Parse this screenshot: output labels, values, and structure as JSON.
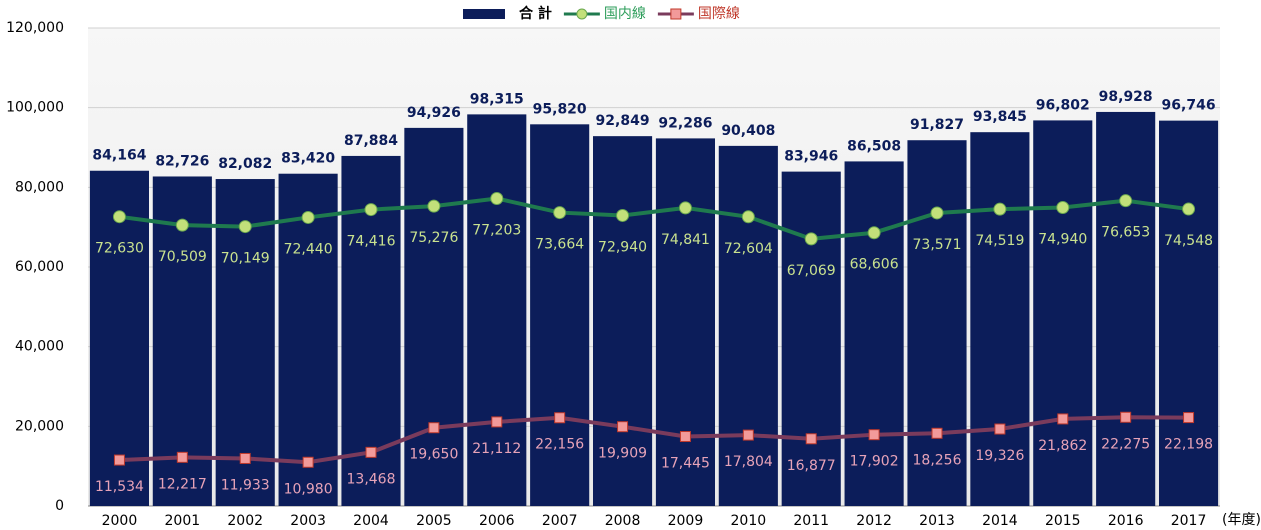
{
  "chart_data": {
    "type": "bar",
    "xlabel": "(年度)",
    "categories": [
      "2000",
      "2001",
      "2002",
      "2003",
      "2004",
      "2005",
      "2006",
      "2007",
      "2008",
      "2009",
      "2010",
      "2011",
      "2012",
      "2013",
      "2014",
      "2015",
      "2016",
      "2017"
    ],
    "series": [
      {
        "name": "合 計",
        "type": "bar",
        "color": "#0c1d5a",
        "label_color": "#0c1d5a",
        "values": [
          84164,
          82726,
          82082,
          83420,
          87884,
          94926,
          98315,
          95820,
          92849,
          92286,
          90408,
          83946,
          86508,
          91827,
          93845,
          96802,
          98928,
          96746
        ],
        "value_labels": [
          "84,164",
          "82,726",
          "82,082",
          "83,420",
          "87,884",
          "94,926",
          "98,315",
          "95,820",
          "92,849",
          "92,286",
          "90,408",
          "83,946",
          "86,508",
          "91,827",
          "93,845",
          "96,802",
          "98,928",
          "96,746"
        ]
      },
      {
        "name": "国内線",
        "type": "line",
        "color": "#1f7a4e",
        "marker_color": "#c2e07a",
        "label_color": "#c9e28f",
        "values": [
          72630,
          70509,
          70149,
          72440,
          74416,
          75276,
          77203,
          73664,
          72940,
          74841,
          72604,
          67069,
          68606,
          73571,
          74519,
          74940,
          76653,
          74548
        ],
        "value_labels": [
          "72,630",
          "70,509",
          "70,149",
          "72,440",
          "74,416",
          "75,276",
          "77,203",
          "73,664",
          "72,940",
          "74,841",
          "72,604",
          "67,069",
          "68,606",
          "73,571",
          "74,519",
          "74,940",
          "76,653",
          "74,548"
        ]
      },
      {
        "name": "国際線",
        "type": "line",
        "color": "#7a3b5c",
        "marker_color": "#f29a9a",
        "label_color": "#e7a3b8",
        "values": [
          11534,
          12217,
          11933,
          10980,
          13468,
          19650,
          21112,
          22156,
          19909,
          17445,
          17804,
          16877,
          17902,
          18256,
          19326,
          21862,
          22275,
          22198
        ],
        "value_labels": [
          "11,534",
          "12,217",
          "11,933",
          "10,980",
          "13,468",
          "19,650",
          "21,112",
          "22,156",
          "19,909",
          "17,445",
          "17,804",
          "16,877",
          "17,902",
          "18,256",
          "19,326",
          "21,862",
          "22,275",
          "22,198"
        ]
      }
    ],
    "ylim": [
      0,
      120000
    ],
    "yticks": [
      0,
      {
        "value": 20000,
        "label": "20,000"
      },
      {
        "value": 40000,
        "label": "40,000"
      },
      {
        "value": 60000,
        "label": "60,000"
      },
      {
        "value": 80000,
        "label": "80,000"
      },
      {
        "value": 100000,
        "label": "100,000"
      },
      {
        "value": 120000,
        "label": "120,000"
      }
    ],
    "grid": true
  }
}
